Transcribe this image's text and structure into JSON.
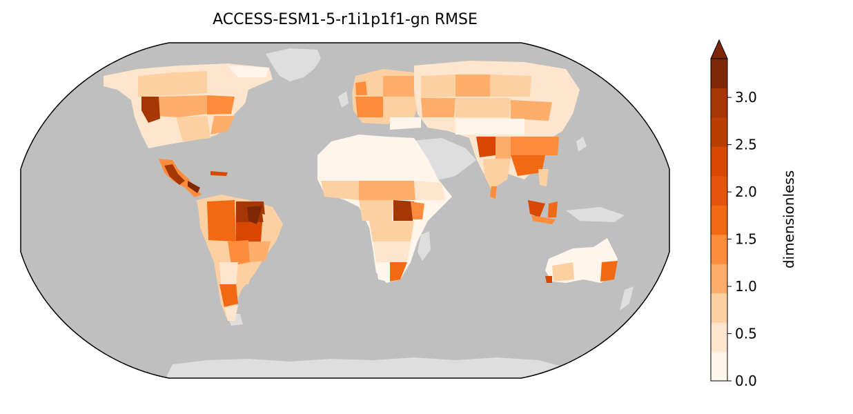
{
  "title": "ACCESS-ESM1-5-r1i1p1f1-gn RMSE",
  "map": {
    "projection": "robinson",
    "ocean_color": "#bfbfbf",
    "no_data_land_color": "#dedede"
  },
  "colorbar": {
    "label": "dimensionless",
    "min": 0.0,
    "max": 3.25,
    "extend": "max",
    "levels": [
      0.0,
      0.25,
      0.5,
      0.75,
      1.0,
      1.25,
      1.5,
      1.75,
      2.0,
      2.25,
      2.5,
      2.75,
      3.0,
      3.25
    ],
    "colors": [
      "#fff5eb",
      "#fee6ce",
      "#fdd0a2",
      "#fdae6b",
      "#fd8d3c",
      "#f16913",
      "#e6550d",
      "#d94801",
      "#b93f02",
      "#a63603",
      "#7f2704"
    ],
    "ticks": [
      {
        "value": 0.0,
        "label": "0.0"
      },
      {
        "value": 0.5,
        "label": "0.5"
      },
      {
        "value": 1.0,
        "label": "1.0"
      },
      {
        "value": 1.5,
        "label": "1.5"
      },
      {
        "value": 2.0,
        "label": "2.0"
      },
      {
        "value": 2.5,
        "label": "2.5"
      },
      {
        "value": 3.0,
        "label": "3.0"
      }
    ]
  }
}
